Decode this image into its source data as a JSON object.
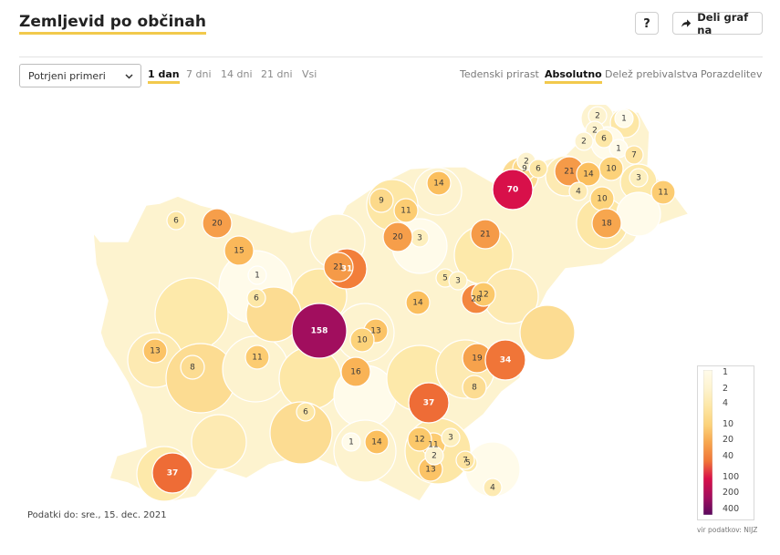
{
  "header": {
    "title": "Zemljevid po občinah",
    "help_label": "?",
    "share_label": "Deli graf na"
  },
  "controls": {
    "selected_measure": "Potrjeni primeri",
    "periods": [
      {
        "label": "1 dan",
        "active": true
      },
      {
        "label": "7 dni",
        "active": false
      },
      {
        "label": "14 dni",
        "active": false
      },
      {
        "label": "21 dni",
        "active": false
      },
      {
        "label": "Vsi",
        "active": false
      }
    ],
    "metrics": [
      {
        "label": "Tedenski prirast",
        "active": false
      },
      {
        "label": "Absolutno",
        "active": true
      },
      {
        "label": "Delež prebivalstva",
        "active": false
      },
      {
        "label": "Porazdelitev",
        "active": false
      }
    ]
  },
  "map": {
    "values": [
      {
        "v": "2",
        "c": "#fdf3cf"
      },
      {
        "v": "1",
        "c": "#fffbea"
      },
      {
        "v": "2",
        "c": "#fdf3cf"
      },
      {
        "v": "6",
        "c": "#fde7a6"
      },
      {
        "v": "1",
        "c": "#fffbea"
      },
      {
        "v": "2",
        "c": "#fdf3cf"
      },
      {
        "v": "7",
        "c": "#fde3a0"
      },
      {
        "v": "9",
        "c": "#fcd98a"
      },
      {
        "v": "2",
        "c": "#fdf3cf"
      },
      {
        "v": "6",
        "c": "#fde7a6"
      },
      {
        "v": "21",
        "c": "#f59a48"
      },
      {
        "v": "10",
        "c": "#fcd27a"
      },
      {
        "v": "3",
        "c": "#fdefbe"
      },
      {
        "v": "70",
        "c": "#d8104a"
      },
      {
        "v": "14",
        "c": "#fbbf5e"
      },
      {
        "v": "4",
        "c": "#fdeab2"
      },
      {
        "v": "14",
        "c": "#fbbf5e"
      },
      {
        "v": "9",
        "c": "#fcd98a"
      },
      {
        "v": "11",
        "c": "#fccc72"
      },
      {
        "v": "10",
        "c": "#fcd27a"
      },
      {
        "v": "18",
        "c": "#f7a64e"
      },
      {
        "v": "11",
        "c": "#fccc72"
      },
      {
        "v": "6",
        "c": "#fde7a6"
      },
      {
        "v": "20",
        "c": "#f69e4a"
      },
      {
        "v": "15",
        "c": "#fab85a"
      },
      {
        "v": "3",
        "c": "#fdefbe"
      },
      {
        "v": "1",
        "c": "#fffbea"
      },
      {
        "v": "6",
        "c": "#fde7a6"
      },
      {
        "v": "31",
        "c": "#f27e3a"
      },
      {
        "v": "21",
        "c": "#f59a48"
      },
      {
        "v": "5",
        "c": "#fde9aa"
      },
      {
        "v": "3",
        "c": "#fdefbe"
      },
      {
        "v": "21",
        "c": "#f59a48"
      },
      {
        "v": "14",
        "c": "#fbbf5e"
      },
      {
        "v": "28",
        "c": "#f3863e"
      },
      {
        "v": "20",
        "c": "#f69e4a"
      },
      {
        "v": "12",
        "c": "#fbc86a"
      },
      {
        "v": "158",
        "c": "#a10e5e"
      },
      {
        "v": "13",
        "c": "#fbc366"
      },
      {
        "v": "10",
        "c": "#fcd27a"
      },
      {
        "v": "19",
        "c": "#f6a24c"
      },
      {
        "v": "34",
        "c": "#f07538"
      },
      {
        "v": "13",
        "c": "#fbc366"
      },
      {
        "v": "8",
        "c": "#fcdc92"
      },
      {
        "v": "11",
        "c": "#fccc72"
      },
      {
        "v": "16",
        "c": "#f9b356"
      },
      {
        "v": "37",
        "c": "#ee6c36"
      },
      {
        "v": "6",
        "c": "#fde7a6"
      },
      {
        "v": "11",
        "c": "#fccc72"
      },
      {
        "v": "14",
        "c": "#fbbf5e"
      },
      {
        "v": "13",
        "c": "#fbc366"
      },
      {
        "v": "37",
        "c": "#ee6c36"
      },
      {
        "v": "12",
        "c": "#fbc86a"
      },
      {
        "v": "3",
        "c": "#fdefbe"
      },
      {
        "v": "5",
        "c": "#fde9aa"
      },
      {
        "v": "4",
        "c": "#fdeab2"
      },
      {
        "v": "2",
        "c": "#fdf3cf"
      },
      {
        "v": "7",
        "c": "#fde3a0"
      },
      {
        "v": "1",
        "c": "#fffbea"
      },
      {
        "v": "8",
        "c": "#fcdc92"
      }
    ]
  },
  "legend": {
    "ticks": [
      "1",
      "2",
      "4",
      "10",
      "20",
      "40",
      "100",
      "200",
      "400"
    ],
    "colors": [
      "#fffbea",
      "#fdf3cf",
      "#fde7a6",
      "#fcd27a",
      "#f7a64e",
      "#f07538",
      "#d8104a",
      "#a10e5e",
      "#5a0a5e"
    ],
    "source": "vir podatkov: NIJZ"
  },
  "footnote": "Podatki do: sre., 15. dec. 2021"
}
